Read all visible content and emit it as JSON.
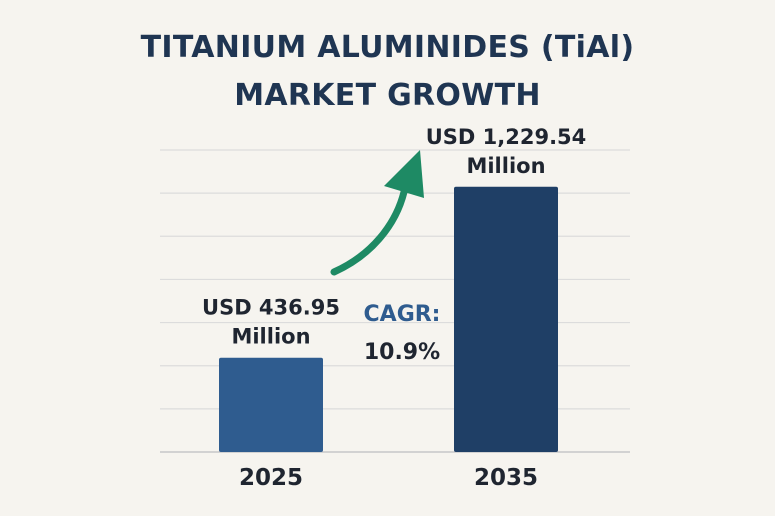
{
  "chart_data": {
    "type": "bar",
    "title_lines": [
      "TITANIUM ALUMINIDES (TiAl)",
      "MARKET GROWTH"
    ],
    "categories": [
      "2025",
      "2035"
    ],
    "values": [
      436.95,
      1229.54
    ],
    "value_labels": [
      [
        "USD 436.95",
        "Million"
      ],
      [
        "USD 1,229.54",
        "Million"
      ]
    ],
    "annotation": {
      "label": "CAGR:",
      "value": "10.9%"
    },
    "ylim": [
      0,
      1400
    ],
    "grid": true,
    "bar_colors": [
      "#2f5c8f",
      "#1f3f66"
    ],
    "arrow_color": "#1e8a64",
    "annotation_color": "#2f5c8f"
  }
}
